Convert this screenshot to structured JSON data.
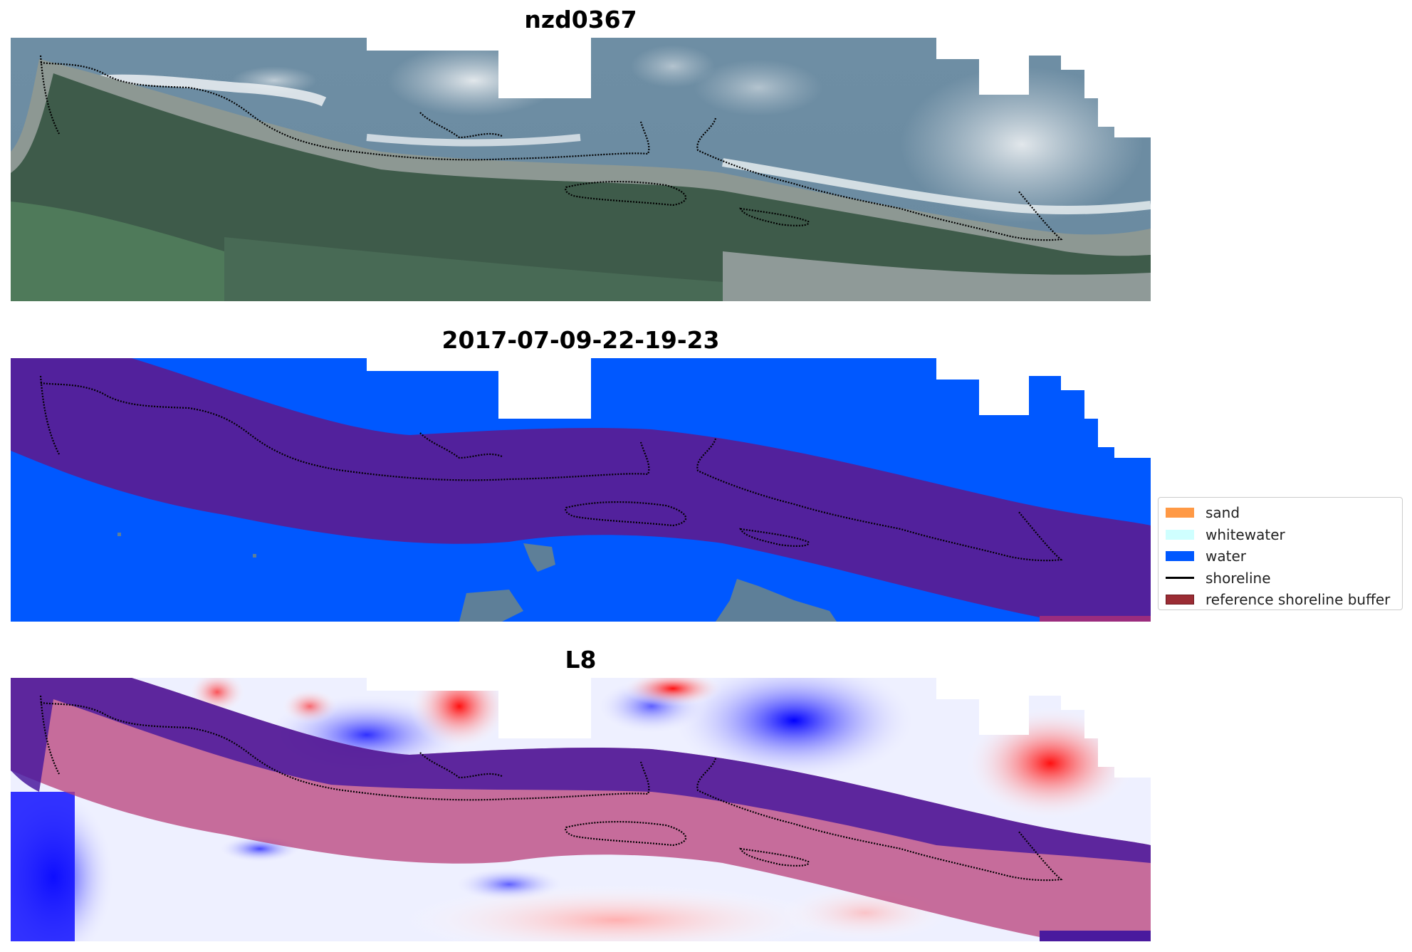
{
  "panels": [
    {
      "title": "nzd0367",
      "kind": "satellite-rgb"
    },
    {
      "title": "2017-07-09-22-19-23",
      "kind": "classification"
    },
    {
      "title": "L8",
      "kind": "water-index"
    }
  ],
  "legend": {
    "items": [
      {
        "label": "sand",
        "color": "#ff9945",
        "shape": "patch"
      },
      {
        "label": "whitewater",
        "color": "#cfffff",
        "shape": "patch"
      },
      {
        "label": "water",
        "color": "#0058ff",
        "shape": "patch"
      },
      {
        "label": "shoreline",
        "color": "#000000",
        "shape": "line"
      },
      {
        "label": "reference shoreline buffer",
        "color": "#9b2c34",
        "shape": "patch"
      }
    ]
  },
  "colors": {
    "buffer_purple": "#52219c",
    "water_blue": "#0058ff",
    "land_grey": "#5e7f98",
    "index_red": "#ff0000",
    "index_blue": "#0000ff"
  }
}
